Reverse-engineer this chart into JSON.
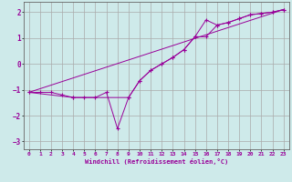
{
  "xlabel": "Windchill (Refroidissement éolien,°C)",
  "background_color": "#ceeaea",
  "grid_color": "#aaaaaa",
  "line_color": "#990099",
  "xlim": [
    -0.5,
    23.5
  ],
  "ylim": [
    -3.3,
    2.4
  ],
  "xticks": [
    0,
    1,
    2,
    3,
    4,
    5,
    6,
    7,
    8,
    9,
    10,
    11,
    12,
    13,
    14,
    15,
    16,
    17,
    18,
    19,
    20,
    21,
    22,
    23
  ],
  "yticks": [
    -3,
    -2,
    -1,
    0,
    1,
    2
  ],
  "series1_x": [
    0,
    1,
    2,
    3,
    4,
    5,
    6,
    7,
    8,
    9,
    10,
    11,
    12,
    13,
    14,
    15,
    16,
    17,
    18,
    19,
    20,
    21,
    22,
    23
  ],
  "series1_y": [
    -1.1,
    -1.1,
    -1.1,
    -1.2,
    -1.3,
    -1.3,
    -1.3,
    -1.1,
    -2.5,
    -1.3,
    -0.65,
    -0.25,
    0.0,
    0.25,
    0.55,
    1.05,
    1.05,
    1.5,
    1.6,
    1.75,
    1.9,
    1.95,
    2.0,
    2.1
  ],
  "series2_x": [
    0,
    4,
    9,
    10,
    11,
    12,
    13,
    14,
    15,
    16,
    17,
    18,
    19,
    20,
    21,
    22,
    23
  ],
  "series2_y": [
    -1.1,
    -1.3,
    -1.3,
    -0.65,
    -0.25,
    0.0,
    0.25,
    0.55,
    1.05,
    1.7,
    1.5,
    1.6,
    1.75,
    1.9,
    1.95,
    2.0,
    2.1
  ],
  "series3_x": [
    0,
    23
  ],
  "series3_y": [
    -1.1,
    2.1
  ]
}
